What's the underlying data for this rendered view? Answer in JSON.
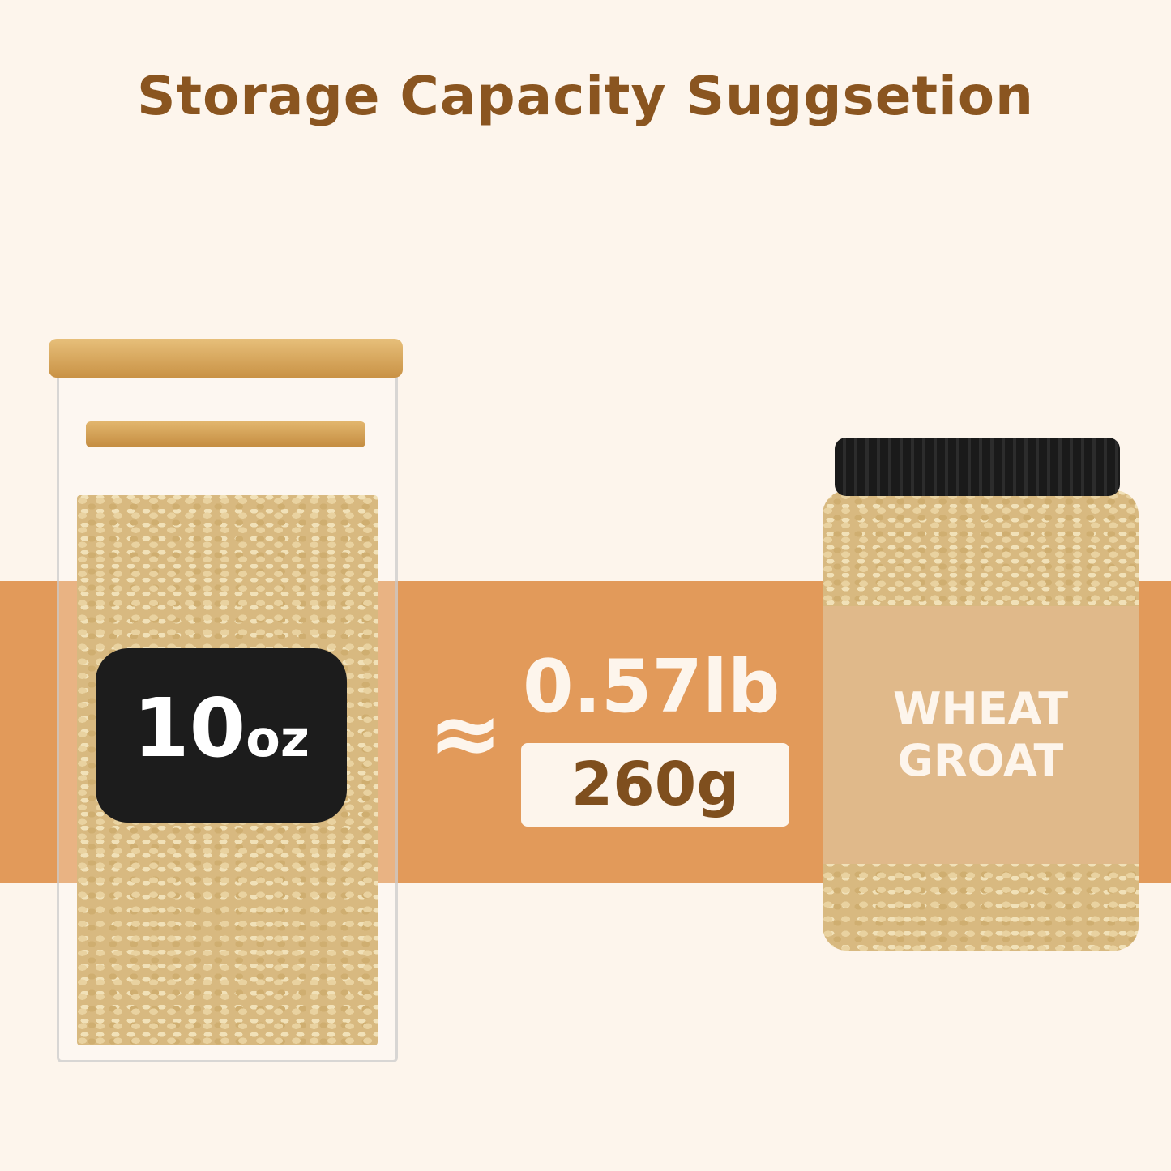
{
  "title": "Storage Capacity Suggsetion",
  "jar_label": {
    "number": "10",
    "unit": "oz"
  },
  "approx_symbol": "≈",
  "weight_lb": "0.57lb",
  "weight_g": "260g",
  "product_label": [
    "WHEAT",
    "GROAT"
  ],
  "colors": {
    "background": "#fdf5ec",
    "band": "#e29a5a",
    "title": "#8a5520",
    "label": "#e0b98a"
  }
}
